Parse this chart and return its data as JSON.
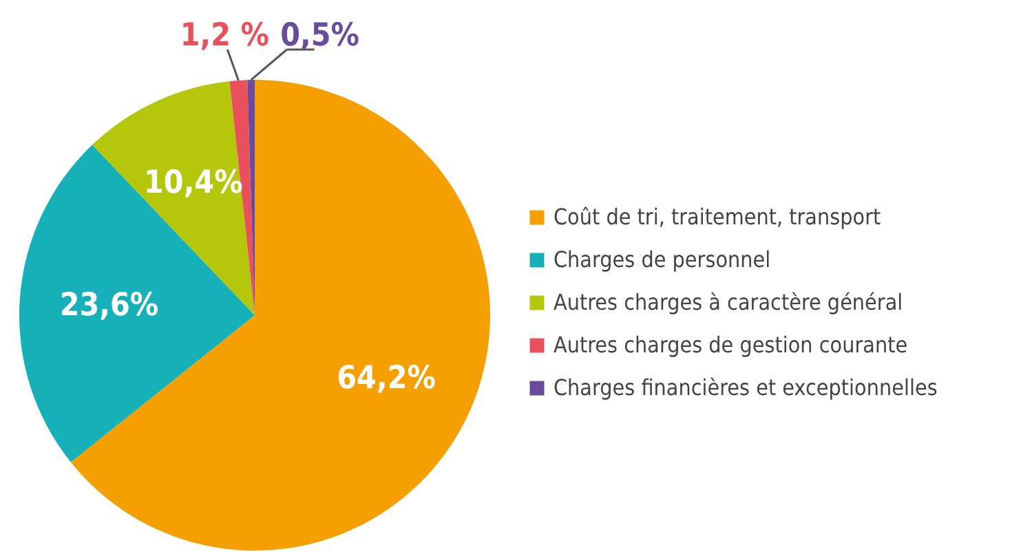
{
  "chart_data": {
    "type": "pie",
    "categories": [
      "Coût de tri, traitement, transport",
      "Charges de personnel",
      "Autres charges à caractère général",
      "Autres charges de gestion courante",
      "Charges financières et exceptionnelles"
    ],
    "values": [
      64.2,
      23.6,
      10.4,
      1.2,
      0.5
    ],
    "value_labels": [
      "64,2%",
      "23,6%",
      "10,4%",
      "1,2 %",
      "0,5%"
    ],
    "colors": [
      "#f5a000",
      "#16b0b8",
      "#b5c70a",
      "#e8505b",
      "#6a4c9c"
    ],
    "legend": "right"
  }
}
